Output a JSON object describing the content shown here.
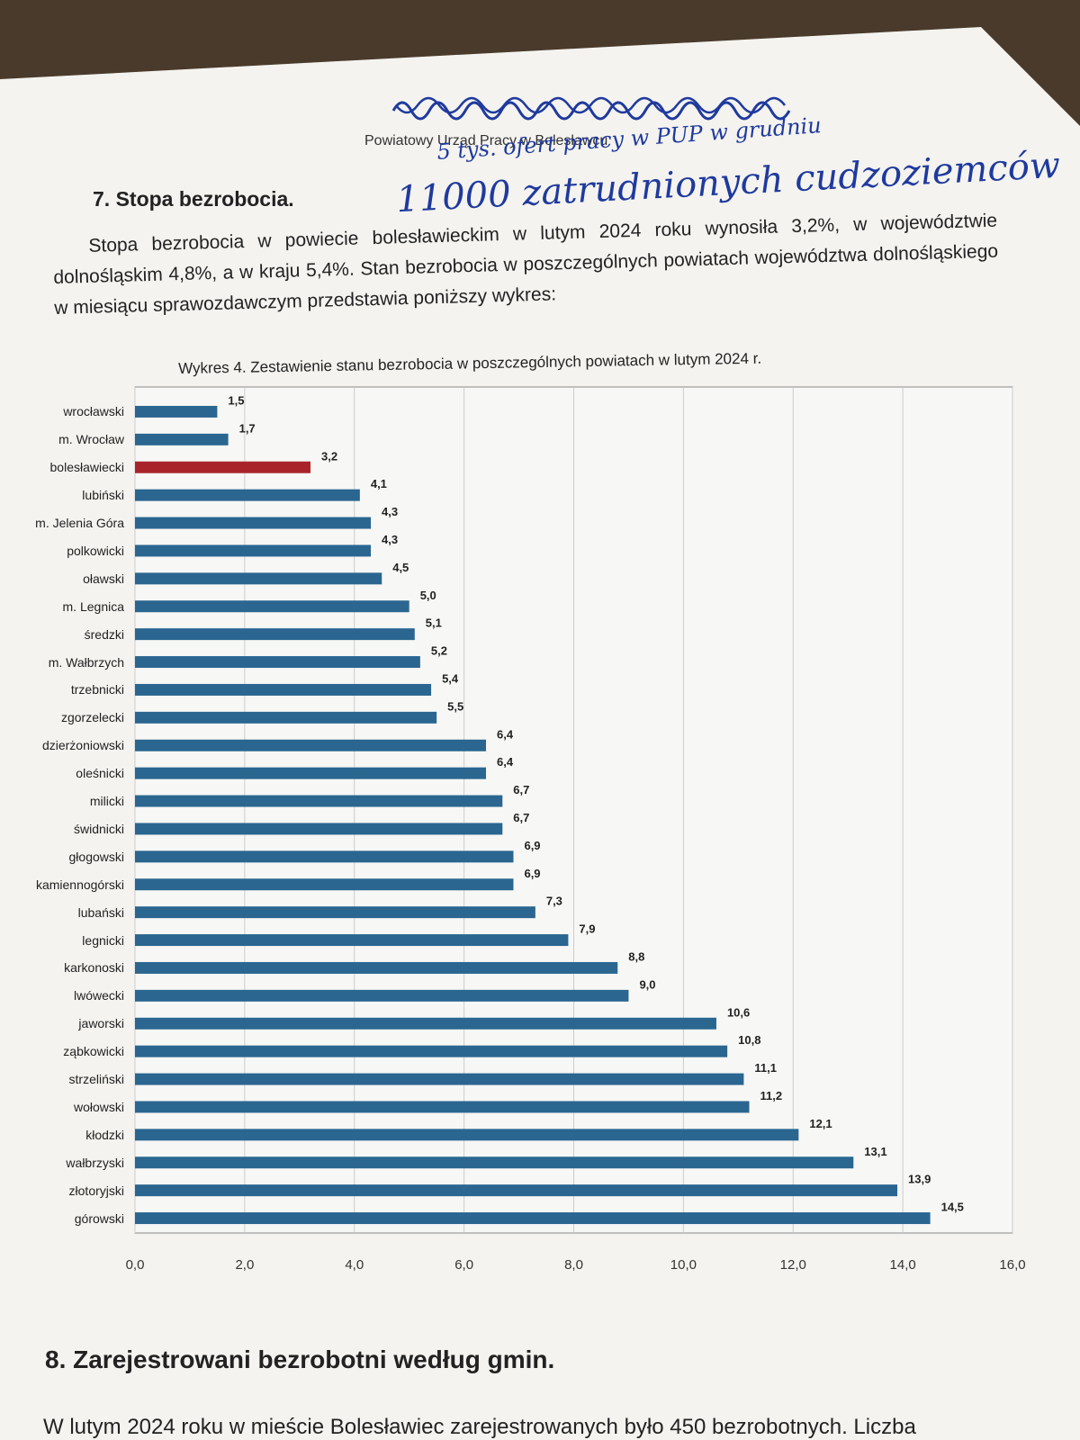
{
  "header": {
    "office": "Powiatowy Urząd Pracy w Bolesławcu",
    "handwritten_line1": "5 tys. ofert pracy w PUP w grudniu",
    "handwritten_line2": "11000 zatrudnionych cudzoziemców"
  },
  "section7": {
    "title": "7. Stopa bezrobocia.",
    "paragraph": "Stopa bezrobocia w powiecie bolesławieckim w lutym 2024 roku wynosiła 3,2%, w województwie dolnośląskim 4,8%, a w kraju 5,4%. Stan bezrobocia w poszczególnych powiatach województwa dolnośląskiego w miesiącu sprawozdawczym przedstawia poniższy wykres:"
  },
  "chart_data": {
    "type": "bar",
    "orientation": "horizontal",
    "title": "Wykres 4. Zestawienie stanu bezrobocia w poszczególnych powiatach w lutym 2024 r.",
    "categories": [
      "wrocławski",
      "m. Wrocław",
      "bolesławiecki",
      "lubiński",
      "m. Jelenia Góra",
      "polkowicki",
      "oławski",
      "m. Legnica",
      "średzki",
      "m. Wałbrzych",
      "trzebnicki",
      "zgorzelecki",
      "dzierżoniowski",
      "oleśnicki",
      "milicki",
      "świdnicki",
      "głogowski",
      "kamiennogórski",
      "lubański",
      "legnicki",
      "karkonoski",
      "lwówecki",
      "jaworski",
      "ząbkowicki",
      "strzeliński",
      "wołowski",
      "kłodzki",
      "wałbrzyski",
      "złotoryjski",
      "górowski"
    ],
    "values": [
      1.5,
      1.7,
      3.2,
      4.1,
      4.3,
      4.3,
      4.5,
      5.0,
      5.1,
      5.2,
      5.4,
      5.5,
      6.4,
      6.4,
      6.7,
      6.7,
      6.9,
      6.9,
      7.3,
      7.9,
      8.8,
      9.0,
      10.6,
      10.8,
      11.1,
      11.2,
      12.1,
      13.1,
      13.9,
      14.5
    ],
    "value_labels": [
      "1,5",
      "1,7",
      "3,2",
      "4,1",
      "4,3",
      "4,3",
      "4,5",
      "5,0",
      "5,1",
      "5,2",
      "5,4",
      "5,5",
      "6,4",
      "6,4",
      "6,7",
      "6,7",
      "6,9",
      "6,9",
      "7,3",
      "7,9",
      "8,8",
      "9,0",
      "10,6",
      "10,8",
      "11,1",
      "11,2",
      "12,1",
      "13,1",
      "13,9",
      "14,5"
    ],
    "highlight_category": "bolesławiecki",
    "xlim": [
      0,
      16
    ],
    "x_ticks": [
      "0,0",
      "2,0",
      "4,0",
      "6,0",
      "8,0",
      "10,0",
      "12,0",
      "14,0",
      "16,0"
    ],
    "grid": true,
    "colors": {
      "bar": "#2a6690",
      "highlight": "#a8242a",
      "grid": "#cccccc"
    }
  },
  "section8": {
    "title": "8. Zarejestrowani bezrobotni według gmin.",
    "first_line": "W lutym 2024 roku w mieście Bolesławiec zarejestrowanych było 450 bezrobotnych. Liczba"
  }
}
